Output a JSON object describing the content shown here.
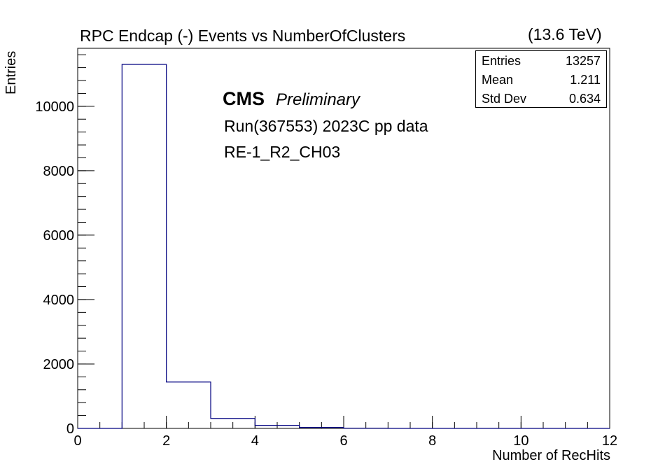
{
  "header": {
    "title": "RPC Endcap (-)  Events vs NumberOfClusters",
    "energy": "(13.6 TeV)"
  },
  "annotations": {
    "cms": "CMS",
    "preliminary": "Preliminary",
    "run": "Run(367553) 2023C pp data",
    "chamber": "RE-1_R2_CH03"
  },
  "stats_box": {
    "rows": [
      {
        "label": "Entries",
        "value": "13257"
      },
      {
        "label": "Mean",
        "value": "1.211"
      },
      {
        "label": "Std Dev",
        "value": "0.634"
      }
    ]
  },
  "colors": {
    "histogram_line": "#000080",
    "axis": "#000000"
  },
  "chart_data": {
    "type": "bar",
    "title": "RPC Endcap (-)  Events vs NumberOfClusters",
    "xlabel": "Number of RecHits",
    "ylabel": "Entries",
    "bin_edges": [
      0,
      1,
      2,
      3,
      4,
      5,
      6,
      7,
      8,
      9,
      10,
      11,
      12
    ],
    "values": [
      0,
      11300,
      1440,
      310,
      95,
      30,
      5,
      0,
      0,
      0,
      0,
      0
    ],
    "xlim": [
      0,
      12
    ],
    "ylim": [
      0,
      11800
    ],
    "xticks": [
      0,
      2,
      4,
      6,
      8,
      10,
      12
    ],
    "yticks": [
      0,
      2000,
      4000,
      6000,
      8000,
      10000
    ],
    "grid": false,
    "legend": "none"
  }
}
